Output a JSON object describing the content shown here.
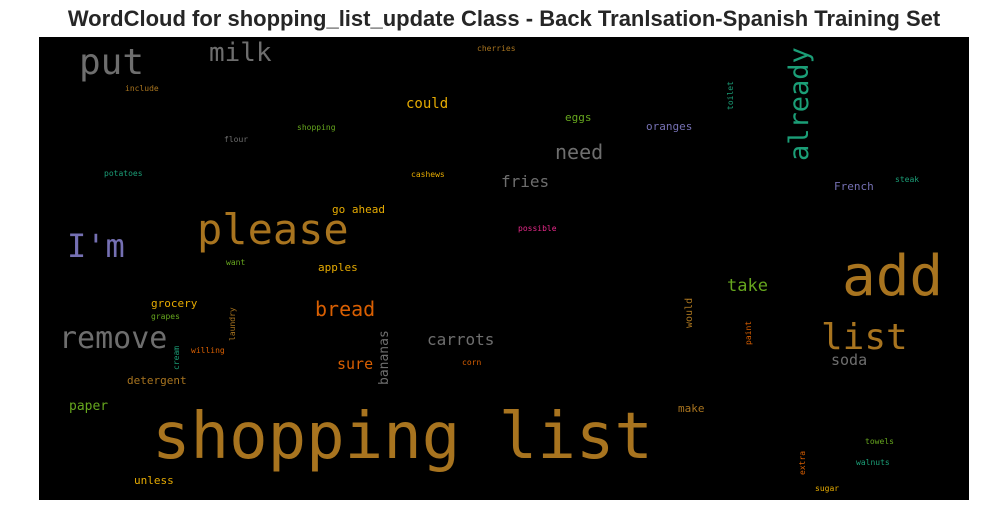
{
  "title": "WordCloud for shopping_list_update Class - Back Tranlsation-Spanish Training Set",
  "colors": {
    "background": "#000000",
    "title": "#262626"
  },
  "words": [
    {
      "text": "shopping list",
      "color": "#a8741f"
    },
    {
      "text": "add",
      "color": "#a8741f"
    },
    {
      "text": "please",
      "color": "#a8741f"
    },
    {
      "text": "list",
      "color": "#a8741f"
    },
    {
      "text": "put",
      "color": "#6e6e6e"
    },
    {
      "text": "I'm",
      "color": "#7570b3"
    },
    {
      "text": "remove",
      "color": "#6e6e6e"
    },
    {
      "text": "already",
      "color": "#1b9e77"
    },
    {
      "text": "milk",
      "color": "#6e6e6e"
    },
    {
      "text": "need",
      "color": "#6e6e6e"
    },
    {
      "text": "bread",
      "color": "#d95f02"
    },
    {
      "text": "carrots",
      "color": "#6e6e6e"
    },
    {
      "text": "take",
      "color": "#66a61e"
    },
    {
      "text": "fries",
      "color": "#6e6e6e"
    },
    {
      "text": "sure",
      "color": "#d95f02"
    },
    {
      "text": "soda",
      "color": "#6e6e6e"
    },
    {
      "text": "bananas",
      "color": "#6e6e6e"
    },
    {
      "text": "could",
      "color": "#e6ab02"
    },
    {
      "text": "paper",
      "color": "#66a61e"
    },
    {
      "text": "oranges",
      "color": "#7570b3"
    },
    {
      "text": "French",
      "color": "#7570b3"
    },
    {
      "text": "eggs",
      "color": "#66a61e"
    },
    {
      "text": "go ahead",
      "color": "#e6ab02"
    },
    {
      "text": "apples",
      "color": "#e6ab02"
    },
    {
      "text": "grocery",
      "color": "#e6ab02"
    },
    {
      "text": "detergent",
      "color": "#a8741f"
    },
    {
      "text": "unless",
      "color": "#e6ab02"
    },
    {
      "text": "make",
      "color": "#a8741f"
    },
    {
      "text": "would",
      "color": "#a8741f"
    },
    {
      "text": "cherries",
      "color": "#a8741f"
    },
    {
      "text": "include",
      "color": "#a8741f"
    },
    {
      "text": "shopping",
      "color": "#66a61e"
    },
    {
      "text": "flour",
      "color": "#6e6e6e"
    },
    {
      "text": "potatoes",
      "color": "#1b9e77"
    },
    {
      "text": "cashews",
      "color": "#e6ab02"
    },
    {
      "text": "possible",
      "color": "#e7298a"
    },
    {
      "text": "want",
      "color": "#66a61e"
    },
    {
      "text": "grapes",
      "color": "#66a61e"
    },
    {
      "text": "laundry",
      "color": "#a8741f"
    },
    {
      "text": "cream",
      "color": "#1b9e77"
    },
    {
      "text": "willing",
      "color": "#d95f02"
    },
    {
      "text": "corn",
      "color": "#d95f02"
    },
    {
      "text": "toilet",
      "color": "#1b9e77"
    },
    {
      "text": "steak",
      "color": "#1b9e77"
    },
    {
      "text": "paint",
      "color": "#d95f02"
    },
    {
      "text": "extra",
      "color": "#d95f02"
    },
    {
      "text": "towels",
      "color": "#66a61e"
    },
    {
      "text": "walnuts",
      "color": "#1b9e77"
    },
    {
      "text": "sugar",
      "color": "#e6ab02"
    }
  ]
}
